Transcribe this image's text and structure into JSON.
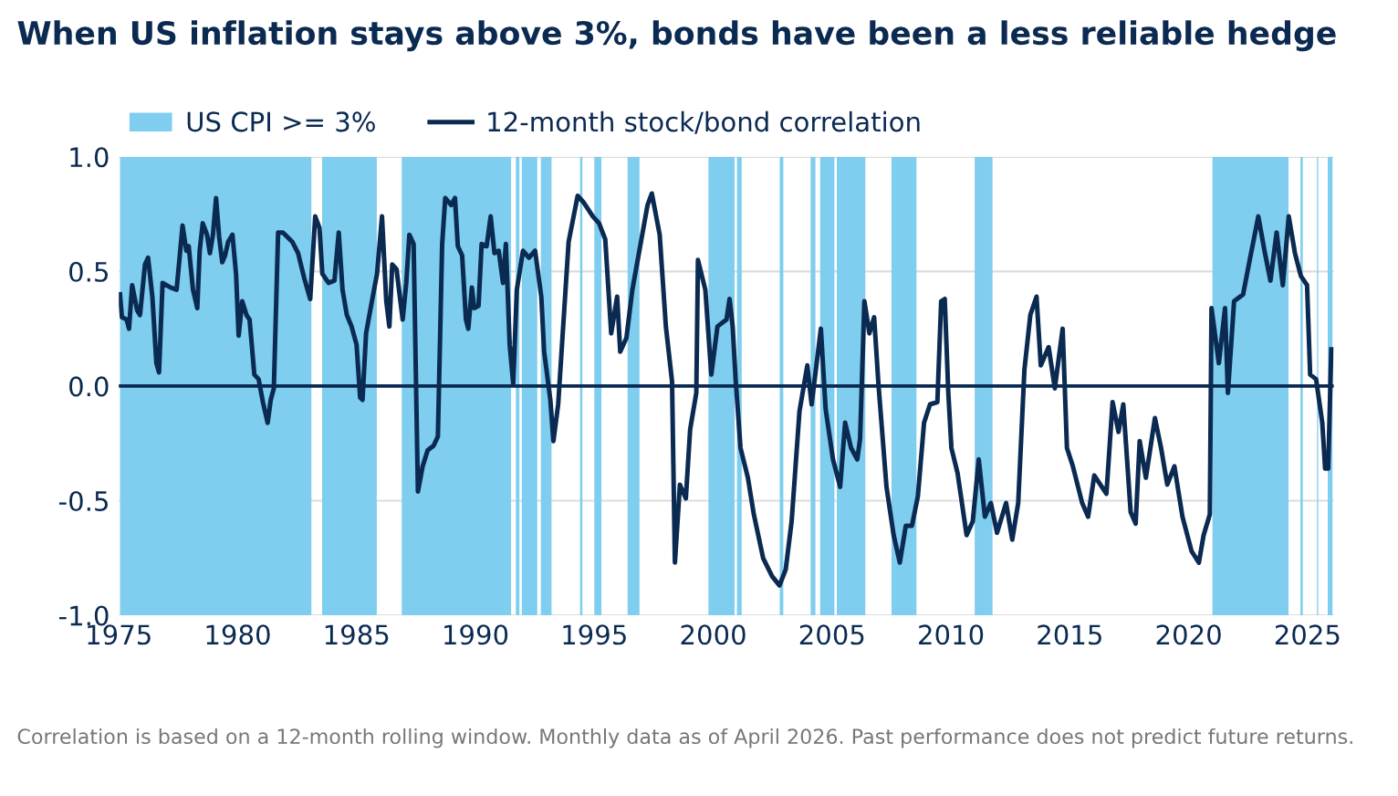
{
  "chart_data": {
    "type": "line",
    "title": "When US inflation stays above 3%, bonds have been a less reliable hedge",
    "annotations": [
      "Correlation is based on a 12-month rolling window. Monthly data as of April 2026. Past performance does not predict future returns."
    ],
    "xlim": [
      1975,
      2026.1
    ],
    "xticks": [
      1975,
      1980,
      1985,
      1990,
      1995,
      2000,
      2005,
      2010,
      2015,
      2020,
      2025
    ],
    "ylim": [
      -1.0,
      1.0
    ],
    "yticks": [
      {
        "value": -1.0,
        "label": "-1.0"
      },
      {
        "value": -0.5,
        "label": "-0.5"
      },
      {
        "value": 0.0,
        "label": "0.0"
      },
      {
        "value": 0.5,
        "label": "0.5"
      },
      {
        "value": 1.0,
        "label": "1.0"
      }
    ],
    "grid": "y",
    "legend": "top",
    "line_style": "solid",
    "marker": "none",
    "ref_lines": [
      {
        "axis": "y",
        "value": 0,
        "color": "#0b2a52"
      }
    ],
    "bands": [
      {
        "axis": "x",
        "from": 1975.05,
        "to": 1983.1,
        "label": "US CPI >= 3%",
        "color": "#7fcdef"
      },
      {
        "axis": "x",
        "from": 1983.55,
        "to": 1985.85,
        "color": "#7fcdef"
      },
      {
        "axis": "x",
        "from": 1986.9,
        "to": 1991.5,
        "color": "#7fcdef"
      },
      {
        "axis": "x",
        "from": 1991.7,
        "to": 1991.85,
        "color": "#7fcdef"
      },
      {
        "axis": "x",
        "from": 1991.95,
        "to": 1992.6,
        "color": "#7fcdef"
      },
      {
        "axis": "x",
        "from": 1992.75,
        "to": 1993.2,
        "color": "#7fcdef"
      },
      {
        "axis": "x",
        "from": 1994.4,
        "to": 1994.5,
        "color": "#7fcdef"
      },
      {
        "axis": "x",
        "from": 1995.0,
        "to": 1995.3,
        "color": "#7fcdef"
      },
      {
        "axis": "x",
        "from": 1996.4,
        "to": 1996.9,
        "color": "#7fcdef"
      },
      {
        "axis": "x",
        "from": 1999.8,
        "to": 2000.9,
        "color": "#7fcdef"
      },
      {
        "axis": "x",
        "from": 2001.0,
        "to": 2001.2,
        "color": "#7fcdef"
      },
      {
        "axis": "x",
        "from": 2002.8,
        "to": 2002.95,
        "color": "#7fcdef"
      },
      {
        "axis": "x",
        "from": 2004.1,
        "to": 2004.3,
        "color": "#7fcdef"
      },
      {
        "axis": "x",
        "from": 2004.5,
        "to": 2005.1,
        "color": "#7fcdef"
      },
      {
        "axis": "x",
        "from": 2005.2,
        "to": 2006.4,
        "color": "#7fcdef"
      },
      {
        "axis": "x",
        "from": 2007.5,
        "to": 2008.55,
        "color": "#7fcdef"
      },
      {
        "axis": "x",
        "from": 2011.0,
        "to": 2011.75,
        "color": "#7fcdef"
      },
      {
        "axis": "x",
        "from": 2021.0,
        "to": 2024.2,
        "color": "#7fcdef"
      },
      {
        "axis": "x",
        "from": 2024.7,
        "to": 2024.8,
        "color": "#7fcdef"
      },
      {
        "axis": "x",
        "from": 2025.4,
        "to": 2025.45,
        "color": "#7fcdef"
      },
      {
        "axis": "x",
        "from": 2025.85,
        "to": 2026.05,
        "color": "#7fcdef"
      }
    ],
    "series": [
      {
        "name": "12-month stock/bond correlation",
        "color": "#0b2a52",
        "x": [
          1975.05,
          1975.13,
          1975.33,
          1975.43,
          1975.56,
          1975.77,
          1975.89,
          1976.1,
          1976.23,
          1976.41,
          1976.58,
          1976.69,
          1976.84,
          1977.17,
          1977.43,
          1977.68,
          1977.84,
          1977.94,
          1978.12,
          1978.3,
          1978.4,
          1978.53,
          1978.71,
          1978.83,
          1978.96,
          1979.09,
          1979.22,
          1979.35,
          1979.47,
          1979.6,
          1979.78,
          1979.93,
          1980.04,
          1980.19,
          1980.37,
          1980.5,
          1980.7,
          1980.88,
          1981.06,
          1981.26,
          1981.39,
          1981.52,
          1981.7,
          1981.9,
          1982.29,
          1982.54,
          1982.8,
          1983.05,
          1983.26,
          1983.44,
          1983.56,
          1983.82,
          1984.07,
          1984.25,
          1984.41,
          1984.59,
          1984.79,
          1985.0,
          1985.15,
          1985.25,
          1985.4,
          1985.61,
          1985.86,
          1986.07,
          1986.25,
          1986.38,
          1986.5,
          1986.68,
          1986.94,
          1987.09,
          1987.22,
          1987.4,
          1987.58,
          1987.78,
          1987.99,
          1988.24,
          1988.42,
          1988.6,
          1988.73,
          1988.98,
          1989.14,
          1989.26,
          1989.44,
          1989.6,
          1989.7,
          1989.85,
          1989.95,
          1990.13,
          1990.26,
          1990.47,
          1990.64,
          1990.8,
          1990.98,
          1991.16,
          1991.28,
          1991.44,
          1991.59,
          1991.74,
          1992.0,
          1992.25,
          1992.51,
          1992.77,
          1992.89,
          1993.15,
          1993.28,
          1993.48,
          1993.66,
          1993.92,
          1994.3,
          1994.56,
          1994.94,
          1995.2,
          1995.46,
          1995.71,
          1995.96,
          1996.09,
          1996.35,
          1996.6,
          1996.98,
          1997.24,
          1997.42,
          1997.75,
          1998.01,
          1998.27,
          1998.39,
          1998.6,
          1998.85,
          1999.03,
          1999.29,
          1999.36,
          1999.67,
          1999.92,
          2000.18,
          2000.56,
          2000.69,
          2000.82,
          2000.95,
          2001.15,
          2001.46,
          2001.71,
          2002.1,
          2002.48,
          2002.79,
          2003.05,
          2003.3,
          2003.63,
          2003.96,
          2004.14,
          2004.53,
          2004.73,
          2005.04,
          2005.34,
          2005.55,
          2005.8,
          2006.06,
          2006.18,
          2006.36,
          2006.57,
          2006.77,
          2006.95,
          2007.29,
          2007.59,
          2007.85,
          2008.1,
          2008.36,
          2008.61,
          2008.87,
          2009.12,
          2009.43,
          2009.59,
          2009.74,
          2009.89,
          2010.02,
          2010.28,
          2010.66,
          2010.92,
          2011.17,
          2011.43,
          2011.68,
          2011.94,
          2012.32,
          2012.58,
          2012.83,
          2013.09,
          2013.34,
          2013.6,
          2013.78,
          2014.11,
          2014.37,
          2014.7,
          2014.88,
          2015.13,
          2015.52,
          2015.77,
          2016.03,
          2016.54,
          2016.8,
          2017.05,
          2017.25,
          2017.56,
          2017.77,
          2017.94,
          2018.2,
          2018.58,
          2018.84,
          2019.1,
          2019.4,
          2019.74,
          2020.12,
          2020.43,
          2020.63,
          2020.89,
          2020.96,
          2021.27,
          2021.53,
          2021.65,
          2021.91,
          2022.29,
          2022.55,
          2022.93,
          2023.19,
          2023.44,
          2023.7,
          2023.96,
          2024.21,
          2024.47,
          2024.72,
          2024.98,
          2025.11,
          2025.36,
          2025.62,
          2025.74,
          2025.87,
          2026.0
        ],
        "values": [
          0.4,
          0.3,
          0.29,
          0.25,
          0.44,
          0.33,
          0.31,
          0.53,
          0.56,
          0.39,
          0.1,
          0.06,
          0.45,
          0.43,
          0.42,
          0.7,
          0.59,
          0.61,
          0.42,
          0.34,
          0.59,
          0.71,
          0.66,
          0.58,
          0.66,
          0.82,
          0.65,
          0.54,
          0.57,
          0.63,
          0.66,
          0.49,
          0.22,
          0.37,
          0.31,
          0.29,
          0.05,
          0.03,
          -0.07,
          -0.16,
          -0.06,
          -0.01,
          0.67,
          0.67,
          0.63,
          0.58,
          0.47,
          0.38,
          0.74,
          0.69,
          0.49,
          0.45,
          0.46,
          0.67,
          0.42,
          0.31,
          0.26,
          0.18,
          -0.05,
          -0.06,
          0.23,
          0.35,
          0.49,
          0.74,
          0.37,
          0.26,
          0.53,
          0.51,
          0.29,
          0.45,
          0.66,
          0.62,
          -0.46,
          -0.35,
          -0.28,
          -0.26,
          -0.22,
          0.62,
          0.82,
          0.79,
          0.82,
          0.61,
          0.57,
          0.29,
          0.25,
          0.43,
          0.34,
          0.35,
          0.62,
          0.61,
          0.74,
          0.58,
          0.59,
          0.45,
          0.62,
          0.18,
          0.01,
          0.42,
          0.59,
          0.56,
          0.59,
          0.39,
          0.15,
          -0.06,
          -0.24,
          -0.08,
          0.21,
          0.63,
          0.83,
          0.8,
          0.74,
          0.71,
          0.64,
          0.23,
          0.39,
          0.15,
          0.21,
          0.42,
          0.64,
          0.79,
          0.84,
          0.66,
          0.26,
          0.02,
          -0.77,
          -0.43,
          -0.49,
          -0.19,
          -0.03,
          0.55,
          0.42,
          0.05,
          0.26,
          0.29,
          0.38,
          0.26,
          0.02,
          -0.27,
          -0.4,
          -0.56,
          -0.75,
          -0.83,
          -0.87,
          -0.8,
          -0.59,
          -0.11,
          0.09,
          -0.08,
          0.25,
          -0.1,
          -0.32,
          -0.44,
          -0.16,
          -0.27,
          -0.32,
          -0.23,
          0.37,
          0.23,
          0.3,
          0.01,
          -0.44,
          -0.65,
          -0.77,
          -0.61,
          -0.61,
          -0.48,
          -0.16,
          -0.08,
          -0.07,
          0.37,
          0.38,
          -0.03,
          -0.27,
          -0.38,
          -0.65,
          -0.59,
          -0.32,
          -0.57,
          -0.51,
          -0.64,
          -0.51,
          -0.67,
          -0.51,
          0.07,
          0.31,
          0.39,
          0.09,
          0.17,
          -0.01,
          0.25,
          -0.27,
          -0.35,
          -0.51,
          -0.57,
          -0.39,
          -0.47,
          -0.07,
          -0.2,
          -0.08,
          -0.55,
          -0.6,
          -0.24,
          -0.4,
          -0.14,
          -0.27,
          -0.43,
          -0.35,
          -0.57,
          -0.72,
          -0.77,
          -0.65,
          -0.56,
          0.34,
          0.1,
          0.34,
          -0.03,
          0.37,
          0.4,
          0.54,
          0.74,
          0.59,
          0.46,
          0.67,
          0.44,
          0.74,
          0.58,
          0.48,
          0.44,
          0.05,
          0.03,
          -0.16,
          -0.36,
          -0.36,
          0.16
        ]
      }
    ]
  }
}
